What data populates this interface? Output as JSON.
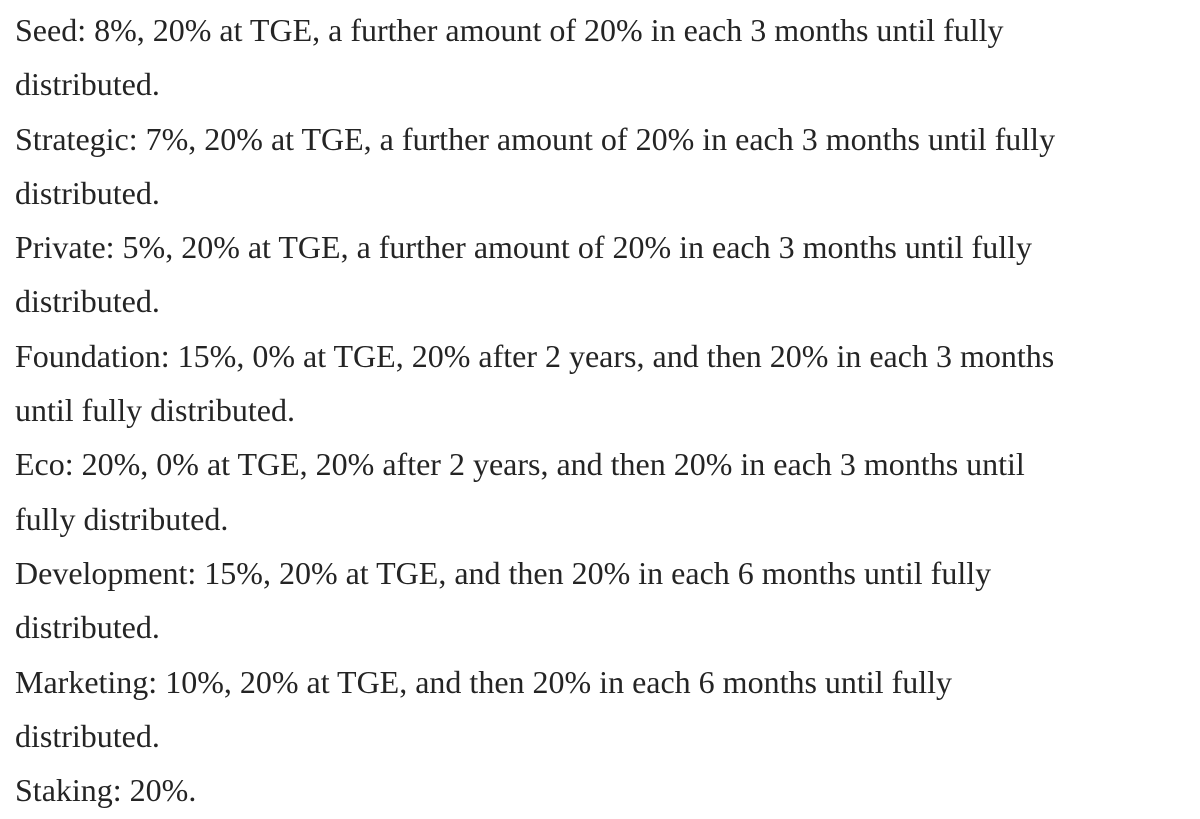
{
  "paragraphs": [
    {
      "lines": [
        "Seed: 8%, 20% at TGE, a further amount of 20% in each 3 months until fully",
        "distributed."
      ]
    },
    {
      "lines": [
        "Strategic: 7%, 20% at TGE, a further amount of 20% in each 3 months until fully",
        "distributed."
      ]
    },
    {
      "lines": [
        "Private: 5%, 20% at TGE, a further amount of 20% in each 3 months until fully",
        "distributed."
      ]
    },
    {
      "lines": [
        "Foundation: 15%, 0% at TGE, 20% after 2 years, and then 20% in each 3 months",
        "until fully distributed."
      ]
    },
    {
      "lines": [
        "Eco: 20%, 0% at TGE, 20% after 2 years, and then 20% in each 3 months until",
        "fully distributed."
      ]
    },
    {
      "lines": [
        "Development: 15%, 20% at TGE, and then 20% in each 6 months until fully",
        "distributed."
      ]
    },
    {
      "lines": [
        "Marketing: 10%, 20% at TGE, and then 20% in each 6 months until fully",
        "distributed."
      ]
    },
    {
      "lines": [
        "Staking: 20%."
      ]
    }
  ]
}
